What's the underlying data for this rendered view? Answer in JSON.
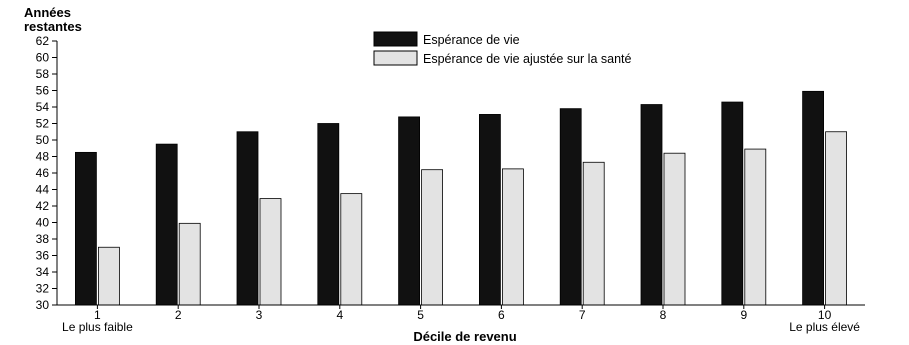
{
  "chart_data": {
    "type": "bar",
    "ylabel_line1": "Années",
    "ylabel_line2": "restantes",
    "xlabel": "Décile de revenu",
    "categories": [
      "1",
      "2",
      "3",
      "4",
      "5",
      "6",
      "7",
      "8",
      "9",
      "10"
    ],
    "category_sublabels": {
      "first": "Le plus faible",
      "last": "Le plus élevé"
    },
    "ylim": [
      30,
      62
    ],
    "yticks": [
      30,
      32,
      34,
      36,
      38,
      40,
      42,
      44,
      46,
      48,
      50,
      52,
      54,
      56,
      58,
      60,
      62
    ],
    "grid": false,
    "legend_position": "top-center",
    "series": [
      {
        "name": "Espérance de vie",
        "color": "#111111",
        "values": [
          48.5,
          49.5,
          51.0,
          52.0,
          52.8,
          53.1,
          53.8,
          54.3,
          54.6,
          55.9
        ]
      },
      {
        "name": "Espérance de vie ajustée sur la santé",
        "color": "#e3e3e3",
        "values": [
          37.0,
          39.9,
          42.9,
          43.5,
          46.4,
          46.5,
          47.3,
          48.4,
          48.9,
          51.0
        ]
      }
    ]
  }
}
